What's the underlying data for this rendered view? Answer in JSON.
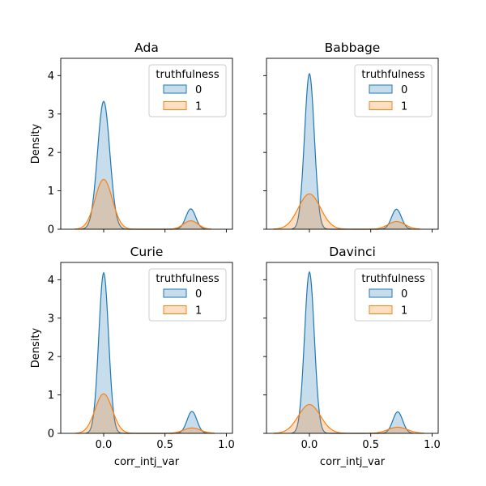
{
  "chart_data": [
    {
      "type": "area",
      "title": "Ada",
      "xlabel": "",
      "ylabel": "Density",
      "xlim": [
        -0.35,
        1.05
      ],
      "ylim": [
        0,
        4.45
      ],
      "x_ticks": [
        "0.0",
        "0.5",
        "1.0"
      ],
      "x_tick_values": [
        0.0,
        0.5,
        1.0
      ],
      "show_x_ticklabels": false,
      "y_ticks": [
        "0",
        "1",
        "2",
        "3",
        "4"
      ],
      "y_tick_values": [
        0,
        1,
        2,
        3,
        4
      ],
      "show_y_ticklabels": true,
      "legend": {
        "title": "truthfulness",
        "placement": "top-right",
        "entries": [
          "0",
          "1"
        ]
      },
      "series": [
        {
          "name": "0",
          "color": "#1f77b4",
          "components": [
            {
              "mu": 0.0,
              "sigma": 0.05,
              "peak": 3.33
            },
            {
              "mu": 0.71,
              "sigma": 0.04,
              "peak": 0.53
            }
          ]
        },
        {
          "name": "1",
          "color": "#ff7f0e",
          "components": [
            {
              "mu": 0.0,
              "sigma": 0.07,
              "peak": 1.3
            },
            {
              "mu": 0.71,
              "sigma": 0.06,
              "peak": 0.22
            }
          ]
        }
      ]
    },
    {
      "type": "area",
      "title": "Babbage",
      "xlabel": "",
      "ylabel": "",
      "xlim": [
        -0.35,
        1.05
      ],
      "ylim": [
        0,
        4.45
      ],
      "x_ticks": [
        "0.0",
        "0.5",
        "1.0"
      ],
      "x_tick_values": [
        0.0,
        0.5,
        1.0
      ],
      "show_x_ticklabels": false,
      "y_ticks": [
        "0",
        "1",
        "2",
        "3",
        "4"
      ],
      "y_tick_values": [
        0,
        1,
        2,
        3,
        4
      ],
      "show_y_ticklabels": false,
      "legend": {
        "title": "truthfulness",
        "placement": "top-right",
        "entries": [
          "0",
          "1"
        ]
      },
      "series": [
        {
          "name": "0",
          "color": "#1f77b4",
          "components": [
            {
              "mu": 0.0,
              "sigma": 0.04,
              "peak": 4.05
            },
            {
              "mu": 0.71,
              "sigma": 0.04,
              "peak": 0.52
            }
          ]
        },
        {
          "name": "1",
          "color": "#ff7f0e",
          "components": [
            {
              "mu": 0.0,
              "sigma": 0.09,
              "peak": 0.92
            },
            {
              "mu": 0.71,
              "sigma": 0.07,
              "peak": 0.2
            }
          ]
        }
      ]
    },
    {
      "type": "area",
      "title": "Curie",
      "xlabel": "corr_intj_var",
      "ylabel": "Density",
      "xlim": [
        -0.35,
        1.05
      ],
      "ylim": [
        0,
        4.45
      ],
      "x_ticks": [
        "0.0",
        "0.5",
        "1.0"
      ],
      "x_tick_values": [
        0.0,
        0.5,
        1.0
      ],
      "show_x_ticklabels": true,
      "y_ticks": [
        "0",
        "1",
        "2",
        "3",
        "4"
      ],
      "y_tick_values": [
        0,
        1,
        2,
        3,
        4
      ],
      "show_y_ticklabels": true,
      "legend": {
        "title": "truthfulness",
        "placement": "top-right",
        "entries": [
          "0",
          "1"
        ]
      },
      "series": [
        {
          "name": "0",
          "color": "#1f77b4",
          "components": [
            {
              "mu": 0.0,
              "sigma": 0.04,
              "peak": 4.18
            },
            {
              "mu": 0.72,
              "sigma": 0.04,
              "peak": 0.57
            }
          ]
        },
        {
          "name": "1",
          "color": "#ff7f0e",
          "components": [
            {
              "mu": 0.0,
              "sigma": 0.07,
              "peak": 1.03
            },
            {
              "mu": 0.72,
              "sigma": 0.07,
              "peak": 0.14
            }
          ]
        }
      ]
    },
    {
      "type": "area",
      "title": "Davinci",
      "xlabel": "corr_intj_var",
      "ylabel": "",
      "xlim": [
        -0.35,
        1.05
      ],
      "ylim": [
        0,
        4.45
      ],
      "x_ticks": [
        "0.0",
        "0.5",
        "1.0"
      ],
      "x_tick_values": [
        0.0,
        0.5,
        1.0
      ],
      "show_x_ticklabels": true,
      "y_ticks": [
        "0",
        "1",
        "2",
        "3",
        "4"
      ],
      "y_tick_values": [
        0,
        1,
        2,
        3,
        4
      ],
      "show_y_ticklabels": false,
      "legend": {
        "title": "truthfulness",
        "placement": "top-right",
        "entries": [
          "0",
          "1"
        ]
      },
      "series": [
        {
          "name": "0",
          "color": "#1f77b4",
          "components": [
            {
              "mu": 0.0,
              "sigma": 0.04,
              "peak": 4.2
            },
            {
              "mu": 0.72,
              "sigma": 0.04,
              "peak": 0.56
            }
          ]
        },
        {
          "name": "1",
          "color": "#ff7f0e",
          "components": [
            {
              "mu": 0.0,
              "sigma": 0.09,
              "peak": 0.75
            },
            {
              "mu": 0.72,
              "sigma": 0.08,
              "peak": 0.16
            }
          ]
        }
      ]
    }
  ]
}
